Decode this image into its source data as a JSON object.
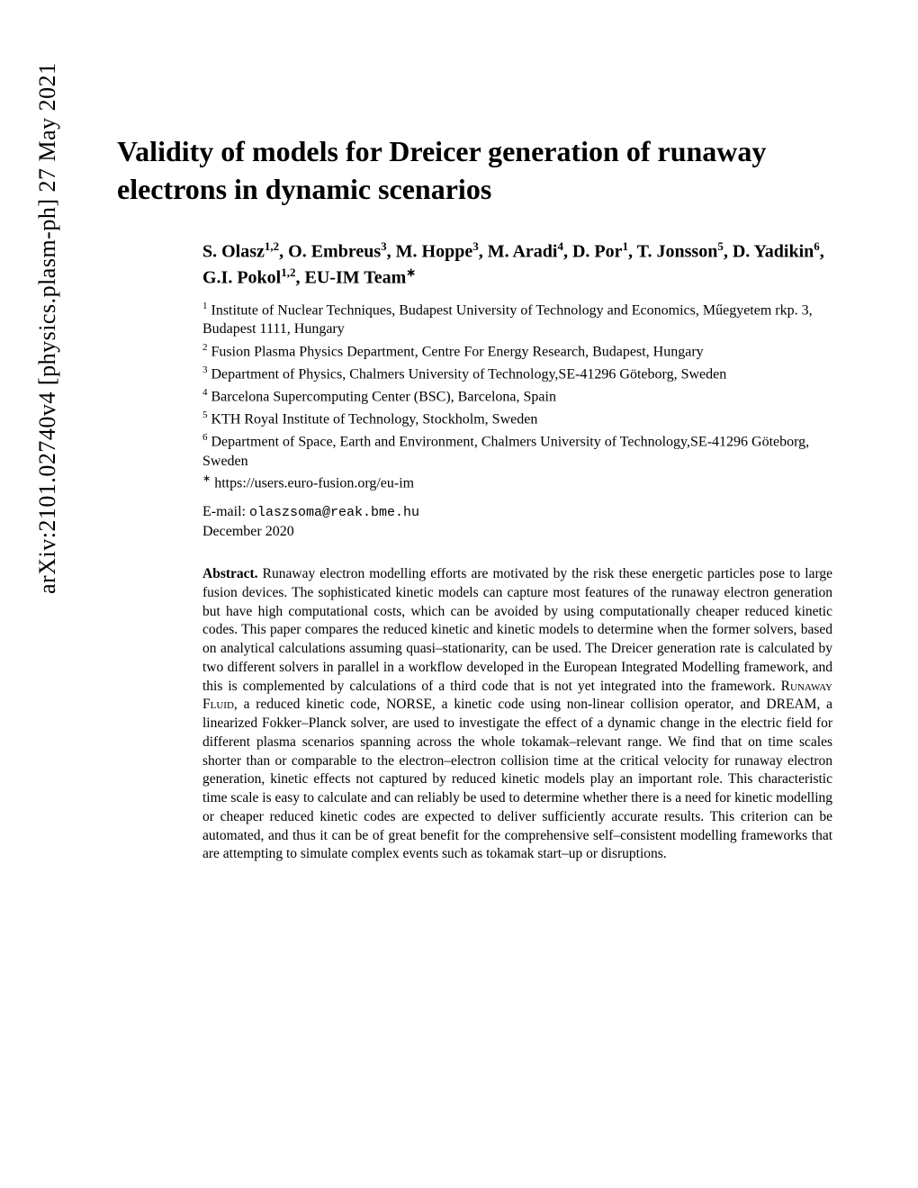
{
  "arxiv": {
    "id": "arXiv:2101.02740v4",
    "category": "[physics.plasm-ph]",
    "date": "27 May 2021"
  },
  "title": "Validity of models for Dreicer generation of runaway electrons in dynamic scenarios",
  "authors_line1": "S. Olasz",
  "authors_sup1": "1,2",
  "authors_seg2": ", O. Embreus",
  "authors_sup2": "3",
  "authors_seg3": ", M. Hoppe",
  "authors_sup3": "3",
  "authors_seg4": ", M. Aradi",
  "authors_sup4": "4",
  "authors_seg5": ", D. Por",
  "authors_sup5": "1",
  "authors_seg6": ", T. Jonsson",
  "authors_sup6": "5",
  "authors_seg7": ", D. Yadikin",
  "authors_sup7": "6",
  "authors_seg8": ", G.I. Pokol",
  "authors_sup8": "1,2",
  "authors_seg9": ", EU-IM Team",
  "authors_sup9": "∗",
  "affiliations": [
    {
      "sup": "1",
      "text": " Institute of Nuclear Techniques, Budapest University of Technology and Economics, Műegyetem rkp. 3, Budapest 1111, Hungary"
    },
    {
      "sup": "2",
      "text": " Fusion Plasma Physics Department, Centre For Energy Research, Budapest, Hungary"
    },
    {
      "sup": "3",
      "text": " Department of Physics, Chalmers University of Technology,SE-41296 Göteborg, Sweden"
    },
    {
      "sup": "4",
      "text": " Barcelona Supercomputing Center (BSC), Barcelona, Spain"
    },
    {
      "sup": "5",
      "text": " KTH Royal Institute of Technology, Stockholm, Sweden"
    },
    {
      "sup": "6",
      "text": " Department of Space, Earth and Environment, Chalmers University of Technology,SE-41296 Göteborg, Sweden"
    },
    {
      "sup": "∗",
      "text": " https://users.euro-fusion.org/eu-im"
    }
  ],
  "email_label": "E-mail: ",
  "email": "olaszsoma@reak.bme.hu",
  "date": "December 2020",
  "abstract_label": "Abstract.",
  "abstract_pre": "  Runaway electron modelling efforts are motivated by the risk these energetic particles pose to large fusion devices. The sophisticated kinetic models can capture most features of the runaway electron generation but have high computational costs, which can be avoided by using computationally cheaper reduced kinetic codes. This paper compares the reduced kinetic and kinetic models to determine when the former solvers, based on analytical calculations assuming quasi–stationarity, can be used. The Dreicer generation rate is calculated by two different solvers in parallel in a workflow developed in the European Integrated Modelling framework, and this is complemented by calculations of a third code that is not yet integrated into the framework. ",
  "abstract_sc": "Runaway Fluid",
  "abstract_post": ", a reduced kinetic code, NORSE, a kinetic code using non-linear collision operator, and DREAM, a linearized Fokker–Planck solver, are used to investigate the effect of a dynamic change in the electric field for different plasma scenarios spanning across the whole tokamak–relevant range. We find that on time scales shorter than or comparable to the electron–electron collision time at the critical velocity for runaway electron generation, kinetic effects not captured by reduced kinetic models play an important role. This characteristic time scale is easy to calculate and can reliably be used to determine whether there is a need for kinetic modelling or cheaper reduced kinetic codes are expected to deliver sufficiently accurate results. This criterion can be automated, and thus it can be of great benefit for the comprehensive self–consistent modelling frameworks that are attempting to simulate complex events such as tokamak start–up or disruptions."
}
